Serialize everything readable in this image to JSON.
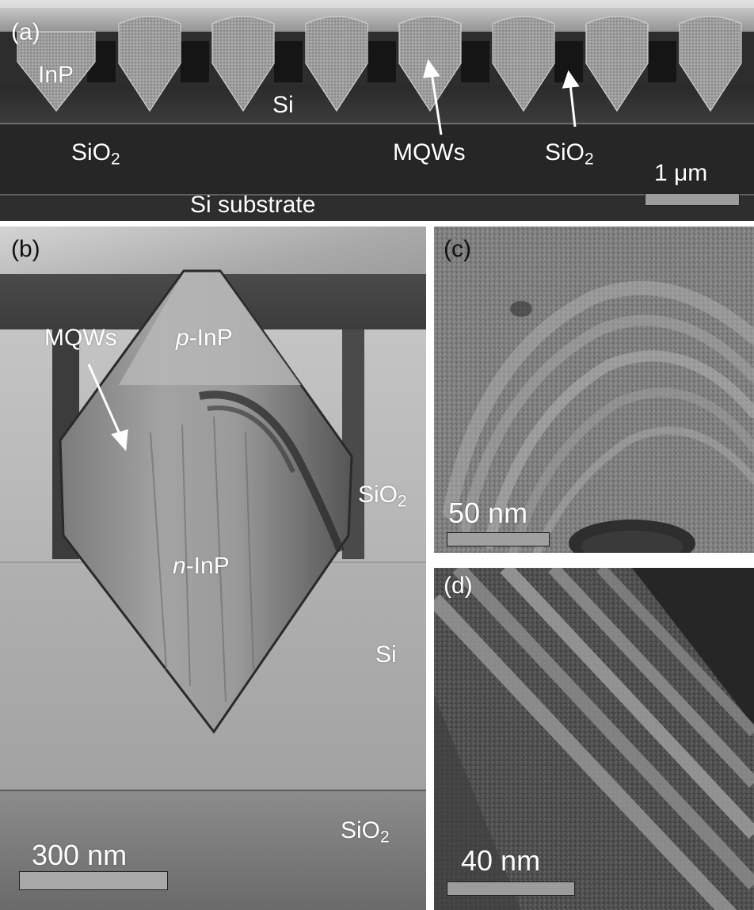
{
  "panels": {
    "a": {
      "tag": "(a)",
      "labels": {
        "inp": "InP",
        "si": "Si",
        "sio2": "SiO",
        "sio2_sub": "2",
        "mqws": "MQWs",
        "sio2_arrow": "SiO",
        "sio2_arrow_sub": "2",
        "substrate": "Si substrate"
      },
      "scale_bar": "1 μm"
    },
    "b": {
      "tag": "(b)",
      "labels": {
        "mqws": "MQWs",
        "p_prefix": "p",
        "p_rest": "-InP",
        "n_prefix": "n",
        "n_rest": "-InP",
        "sio2_right": "SiO",
        "sio2_right_sub": "2",
        "si": "Si",
        "sio2_bottom": "SiO",
        "sio2_bottom_sub": "2"
      },
      "scale_bar": "300 nm"
    },
    "c": {
      "tag": "(c)",
      "scale_bar": "50 nm"
    },
    "d": {
      "tag": "(d)",
      "scale_bar": "40 nm"
    }
  }
}
